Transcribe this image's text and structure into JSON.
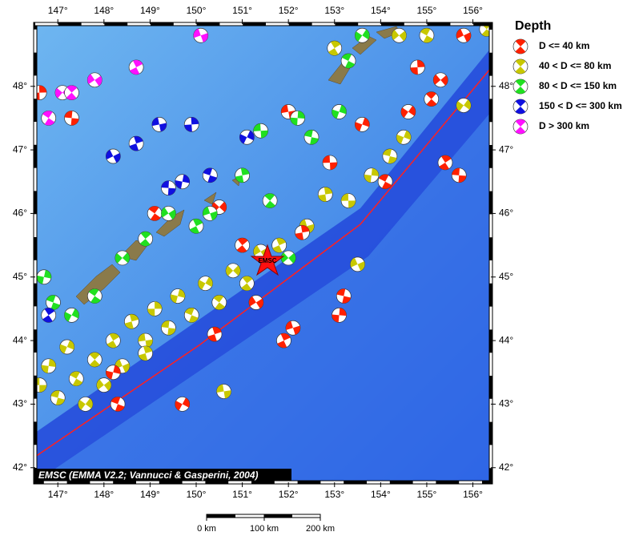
{
  "map": {
    "lon_range": [
      146.51,
      156.39
    ],
    "lat_range": [
      41.77,
      48.98
    ],
    "lon_ticks": [
      {
        "value": 147,
        "label": "147°"
      },
      {
        "value": 148,
        "label": "148°"
      },
      {
        "value": 149,
        "label": "149°"
      },
      {
        "value": 150,
        "label": "150°"
      },
      {
        "value": 151,
        "label": "151°"
      },
      {
        "value": 152,
        "label": "152°"
      },
      {
        "value": 153,
        "label": "153°"
      },
      {
        "value": 154,
        "label": "154°"
      },
      {
        "value": 155,
        "label": "155°"
      },
      {
        "value": 156,
        "label": "156°"
      }
    ],
    "lat_ticks": [
      {
        "value": 42,
        "label": "42°"
      },
      {
        "value": 43,
        "label": "43°"
      },
      {
        "value": 44,
        "label": "44°"
      },
      {
        "value": 45,
        "label": "45°"
      },
      {
        "value": 46,
        "label": "46°"
      },
      {
        "value": 47,
        "label": "47°"
      },
      {
        "value": 48,
        "label": "48°"
      }
    ],
    "epicenter_label": "EMSC",
    "credit": "EMSC (EMMA V2.2; Vannucci & Gasperini, 2004)"
  },
  "legend": {
    "title": "Depth",
    "items": [
      {
        "label": "D <= 40 km",
        "color": "#ff2000"
      },
      {
        "label": "40 < D <= 80 km",
        "color": "#c8c800"
      },
      {
        "label": "80 < D <= 150 km",
        "color": "#20e020"
      },
      {
        "label": "150 < D <= 300 km",
        "color": "#1010e0"
      },
      {
        "label": "D > 300 km",
        "color": "#ff10ff"
      }
    ]
  },
  "scale_bar": {
    "labels": [
      "0 km",
      "100 km",
      "200 km"
    ]
  },
  "events": [
    [
      146.6,
      43.3,
      1
    ],
    [
      146.8,
      43.6,
      1
    ],
    [
      147.0,
      43.1,
      1
    ],
    [
      147.2,
      43.9,
      1
    ],
    [
      147.4,
      43.4,
      1
    ],
    [
      147.6,
      43.0,
      1
    ],
    [
      147.8,
      43.7,
      1
    ],
    [
      148.0,
      43.3,
      1
    ],
    [
      148.2,
      44.0,
      1
    ],
    [
      148.4,
      43.6,
      1
    ],
    [
      148.6,
      44.3,
      1
    ],
    [
      148.9,
      44.0,
      1
    ],
    [
      149.1,
      44.5,
      1
    ],
    [
      149.4,
      44.2,
      1
    ],
    [
      149.6,
      44.7,
      1
    ],
    [
      149.9,
      44.4,
      1
    ],
    [
      150.2,
      44.9,
      1
    ],
    [
      150.5,
      44.6,
      1
    ],
    [
      150.8,
      45.1,
      1
    ],
    [
      151.1,
      44.9,
      1
    ],
    [
      151.4,
      45.4,
      1
    ],
    [
      151.8,
      45.5,
      1
    ],
    [
      152.4,
      45.8,
      1
    ],
    [
      152.8,
      46.3,
      1
    ],
    [
      153.3,
      46.2,
      1
    ],
    [
      153.8,
      46.6,
      1
    ],
    [
      154.2,
      46.9,
      1
    ],
    [
      154.5,
      47.2,
      1
    ],
    [
      155.0,
      48.8,
      1
    ],
    [
      155.8,
      47.7,
      1
    ],
    [
      156.3,
      48.9,
      1
    ],
    [
      154.4,
      48.8,
      1
    ],
    [
      153.0,
      48.6,
      1
    ],
    [
      153.5,
      45.2,
      1
    ],
    [
      148.9,
      43.8,
      1
    ],
    [
      150.6,
      43.2,
      1
    ],
    [
      146.6,
      47.9,
      0
    ],
    [
      147.3,
      47.5,
      0
    ],
    [
      148.2,
      43.5,
      0
    ],
    [
      148.3,
      43.0,
      0
    ],
    [
      149.7,
      43.0,
      0
    ],
    [
      149.1,
      46.0,
      0
    ],
    [
      150.5,
      46.1,
      0
    ],
    [
      151.0,
      45.5,
      0
    ],
    [
      151.3,
      44.6,
      0
    ],
    [
      151.9,
      44.0,
      0
    ],
    [
      152.1,
      44.2,
      0
    ],
    [
      152.3,
      45.7,
      0
    ],
    [
      152.9,
      46.8,
      0
    ],
    [
      153.1,
      44.4,
      0
    ],
    [
      153.2,
      44.7,
      0
    ],
    [
      153.6,
      47.4,
      0
    ],
    [
      154.1,
      46.5,
      0
    ],
    [
      154.6,
      47.6,
      0
    ],
    [
      155.1,
      47.8,
      0
    ],
    [
      155.3,
      48.1,
      0
    ],
    [
      155.4,
      46.8,
      0
    ],
    [
      155.8,
      48.8,
      0
    ],
    [
      150.4,
      44.1,
      0
    ],
    [
      152.0,
      47.6,
      0
    ],
    [
      154.8,
      48.3,
      0
    ],
    [
      155.7,
      46.6,
      0
    ],
    [
      146.7,
      45.0,
      2
    ],
    [
      146.9,
      44.6,
      2
    ],
    [
      147.3,
      44.4,
      2
    ],
    [
      147.8,
      44.7,
      2
    ],
    [
      148.4,
      45.3,
      2
    ],
    [
      148.9,
      45.6,
      2
    ],
    [
      149.4,
      46.0,
      2
    ],
    [
      150.0,
      45.8,
      2
    ],
    [
      150.3,
      46.0,
      2
    ],
    [
      151.0,
      46.6,
      2
    ],
    [
      151.4,
      47.3,
      2
    ],
    [
      152.2,
      47.5,
      2
    ],
    [
      152.5,
      47.2,
      2
    ],
    [
      153.1,
      47.6,
      2
    ],
    [
      153.3,
      48.4,
      2
    ],
    [
      153.6,
      48.8,
      2
    ],
    [
      151.6,
      46.2,
      2
    ],
    [
      152.0,
      45.3,
      2
    ],
    [
      146.8,
      44.4,
      3
    ],
    [
      148.2,
      46.9,
      3
    ],
    [
      148.7,
      47.1,
      3
    ],
    [
      149.2,
      47.4,
      3
    ],
    [
      149.9,
      47.4,
      3
    ],
    [
      149.4,
      46.4,
      3
    ],
    [
      149.7,
      46.5,
      3
    ],
    [
      150.3,
      46.6,
      3
    ],
    [
      151.1,
      47.2,
      3
    ],
    [
      146.8,
      47.5,
      4
    ],
    [
      147.1,
      47.9,
      4
    ],
    [
      147.3,
      47.9,
      4
    ],
    [
      147.8,
      48.1,
      4
    ],
    [
      148.7,
      48.3,
      4
    ],
    [
      150.1,
      48.8,
      4
    ]
  ]
}
